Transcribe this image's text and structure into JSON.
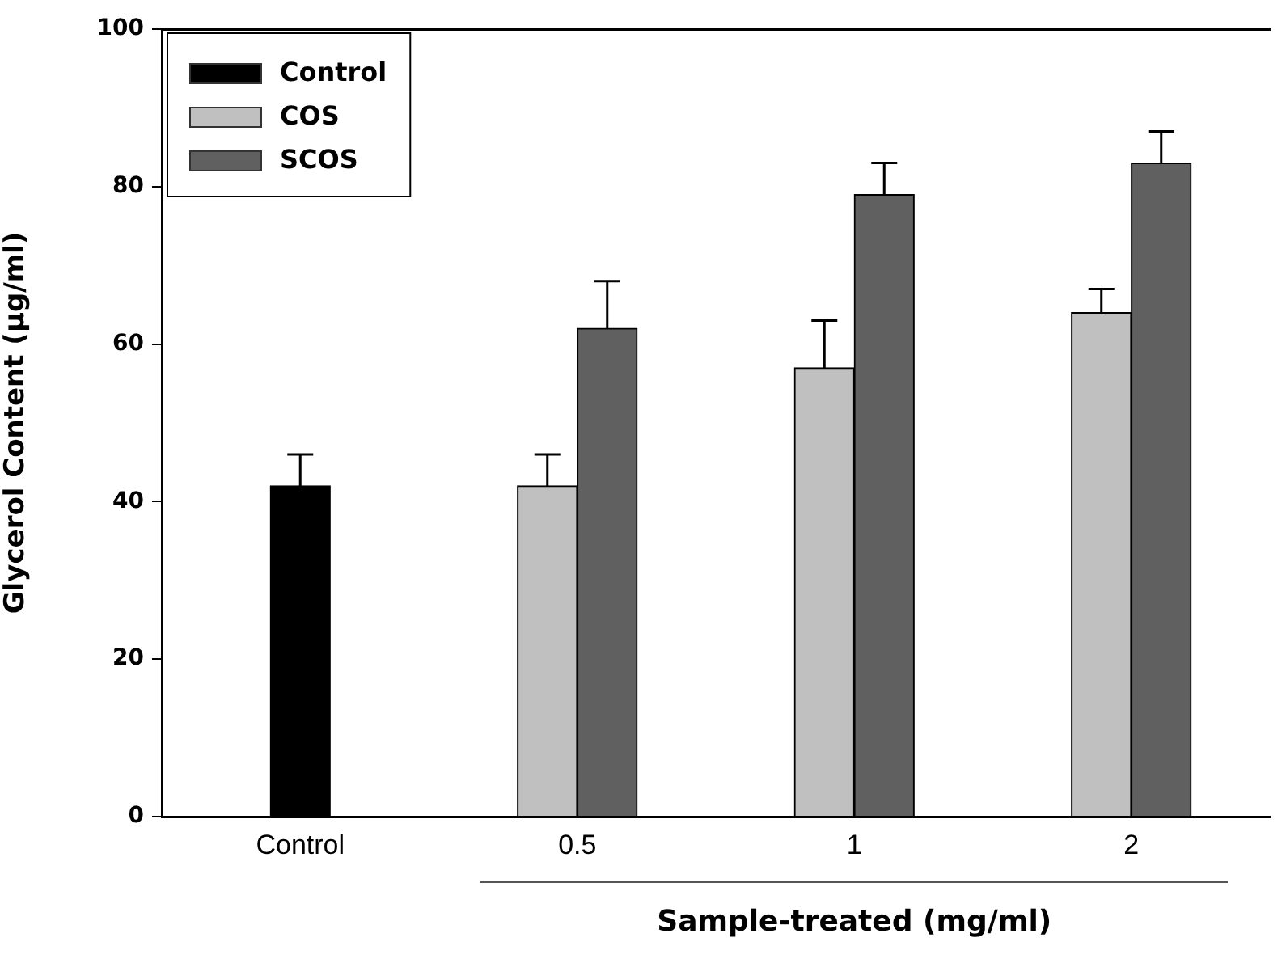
{
  "chart_data": {
    "type": "bar",
    "categories": [
      "Control",
      "0.5",
      "1",
      "2"
    ],
    "series": [
      {
        "name": "Control",
        "color": "#000000",
        "values": [
          42,
          null,
          null,
          null
        ],
        "errors": [
          4,
          null,
          null,
          null
        ]
      },
      {
        "name": "COS",
        "color": "#c0c0c0",
        "values": [
          null,
          42,
          57,
          64
        ],
        "errors": [
          null,
          4,
          6,
          3
        ]
      },
      {
        "name": "SCOS",
        "color": "#606060",
        "values": [
          null,
          62,
          79,
          83
        ],
        "errors": [
          null,
          6,
          4,
          4
        ]
      }
    ],
    "xlabel": "Sample-treated (mg/ml)",
    "ylabel": "Glycerol Content (μg/ml)",
    "ylim": [
      0,
      100
    ],
    "yticks": [
      0,
      20,
      40,
      60,
      80,
      100
    ],
    "legend": "top left"
  }
}
